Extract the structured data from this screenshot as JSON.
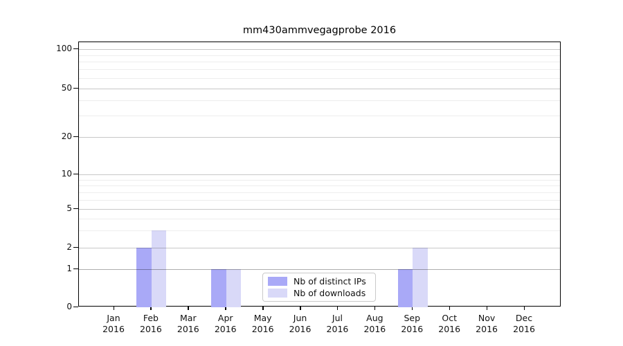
{
  "chart_data": {
    "type": "bar",
    "title": "mm430ammvegagprobe 2016",
    "categories": [
      "Jan",
      "Feb",
      "Mar",
      "Apr",
      "May",
      "Jun",
      "Jul",
      "Aug",
      "Sep",
      "Oct",
      "Nov",
      "Dec"
    ],
    "category_year": "2016",
    "series": [
      {
        "name": "Nb of distinct IPs",
        "color": "#a9a9f7",
        "values": [
          0,
          2,
          0,
          1,
          0,
          0,
          0,
          0,
          1,
          0,
          0,
          0
        ]
      },
      {
        "name": "Nb of downloads",
        "color": "#d9d9f8",
        "values": [
          0,
          3,
          0,
          1,
          0,
          0,
          0,
          0,
          2,
          0,
          0,
          0
        ]
      }
    ],
    "yticks": [
      0,
      1,
      2,
      5,
      10,
      20,
      50,
      100
    ],
    "ylim": [
      0,
      100
    ],
    "yscale": "log-above-1-with-zero",
    "grid": "horizontal-major-and-minor",
    "legend_position": "inside-bottom-center"
  }
}
